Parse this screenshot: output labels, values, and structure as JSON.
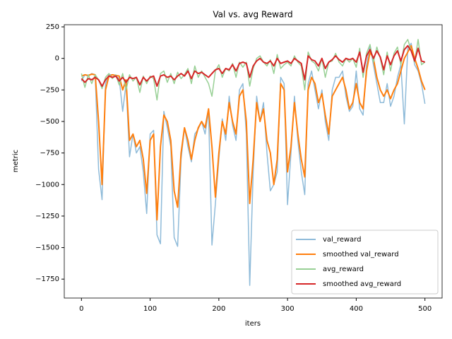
{
  "chart_data": {
    "type": "line",
    "title": "Val vs. avg Reward",
    "x_label": "iters",
    "y_label": "metric",
    "x": [
      0,
      5,
      10,
      15,
      20,
      25,
      30,
      35,
      40,
      45,
      50,
      55,
      60,
      65,
      70,
      75,
      80,
      85,
      90,
      95,
      100,
      105,
      110,
      115,
      120,
      125,
      130,
      135,
      140,
      145,
      150,
      155,
      160,
      165,
      170,
      175,
      180,
      185,
      190,
      195,
      200,
      205,
      210,
      215,
      220,
      225,
      230,
      235,
      240,
      245,
      250,
      255,
      260,
      265,
      270,
      275,
      280,
      285,
      290,
      295,
      300,
      305,
      310,
      315,
      320,
      325,
      330,
      335,
      340,
      345,
      350,
      355,
      360,
      365,
      370,
      375,
      380,
      385,
      390,
      395,
      400,
      405,
      410,
      415,
      420,
      425,
      430,
      435,
      440,
      445,
      450,
      455,
      460,
      465,
      470,
      475,
      480,
      485,
      490,
      495,
      500
    ],
    "series": [
      {
        "name": "val_reward",
        "color": "#8fbbd9",
        "values": [
          -180,
          -130,
          -140,
          -120,
          -130,
          -880,
          -1120,
          -200,
          -130,
          -130,
          -140,
          -160,
          -420,
          -200,
          -780,
          -600,
          -750,
          -700,
          -900,
          -1230,
          -600,
          -570,
          -1400,
          -1470,
          -420,
          -550,
          -700,
          -1420,
          -1490,
          -800,
          -550,
          -700,
          -820,
          -600,
          -560,
          -500,
          -600,
          -420,
          -1480,
          -1150,
          -800,
          -480,
          -650,
          -300,
          -530,
          -650,
          -250,
          -200,
          -600,
          -1800,
          -900,
          -300,
          -500,
          -350,
          -750,
          -1050,
          -1000,
          -900,
          -150,
          -200,
          -1160,
          -750,
          -300,
          -650,
          -900,
          -1080,
          -200,
          -100,
          -250,
          -400,
          -250,
          -500,
          -650,
          -250,
          -150,
          -150,
          -100,
          -300,
          -420,
          -380,
          -100,
          -400,
          -450,
          -50,
          100,
          -50,
          -200,
          -350,
          -350,
          -200,
          -380,
          -300,
          -150,
          -50,
          -520,
          80,
          120,
          -50,
          -100,
          -200,
          -360
        ]
      },
      {
        "name": "smoothed val_reward",
        "color": "#ff7f0e",
        "values": [
          -140,
          -130,
          -135,
          -125,
          -130,
          -500,
          -1000,
          -250,
          -140,
          -130,
          -135,
          -140,
          -250,
          -170,
          -650,
          -600,
          -700,
          -650,
          -800,
          -1070,
          -650,
          -600,
          -1280,
          -700,
          -450,
          -500,
          -650,
          -1050,
          -1180,
          -750,
          -550,
          -650,
          -800,
          -650,
          -550,
          -500,
          -550,
          -400,
          -700,
          -1100,
          -750,
          -500,
          -600,
          -350,
          -500,
          -600,
          -300,
          -250,
          -500,
          -1150,
          -800,
          -350,
          -500,
          -400,
          -650,
          -750,
          -1000,
          -800,
          -200,
          -250,
          -900,
          -700,
          -350,
          -600,
          -800,
          -940,
          -250,
          -150,
          -200,
          -350,
          -280,
          -450,
          -600,
          -300,
          -250,
          -200,
          -150,
          -250,
          -400,
          -350,
          -200,
          -350,
          -400,
          -100,
          50,
          0,
          -150,
          -250,
          -300,
          -250,
          -320,
          -250,
          -200,
          -100,
          0,
          50,
          100,
          0,
          -80,
          -180,
          -250
        ]
      },
      {
        "name": "avg_reward",
        "color": "#98d095",
        "values": [
          -120,
          -230,
          -130,
          -200,
          -130,
          -170,
          -240,
          -150,
          -120,
          -160,
          -130,
          -210,
          -120,
          -250,
          -130,
          -180,
          -150,
          -270,
          -140,
          -200,
          -140,
          -160,
          -330,
          -120,
          -100,
          -190,
          -120,
          -200,
          -110,
          -160,
          -130,
          -80,
          -200,
          -60,
          -150,
          -100,
          -150,
          -200,
          -300,
          -100,
          -50,
          -150,
          -80,
          -100,
          -40,
          -150,
          -30,
          -70,
          -30,
          -220,
          -80,
          0,
          20,
          -30,
          -60,
          -10,
          -120,
          30,
          -80,
          -50,
          -30,
          -60,
          20,
          -30,
          -60,
          -250,
          50,
          -20,
          -40,
          -100,
          0,
          -150,
          -30,
          -20,
          40,
          -30,
          -60,
          0,
          -30,
          0,
          -70,
          80,
          -150,
          40,
          110,
          -30,
          90,
          0,
          -130,
          50,
          -100,
          40,
          90,
          -50,
          110,
          150,
          60,
          -30,
          150,
          -50,
          -30
        ]
      },
      {
        "name": "smoothed avg_reward",
        "color": "#d62728",
        "values": [
          -160,
          -190,
          -160,
          -170,
          -150,
          -170,
          -220,
          -170,
          -140,
          -150,
          -140,
          -180,
          -150,
          -190,
          -150,
          -160,
          -150,
          -210,
          -150,
          -180,
          -150,
          -140,
          -220,
          -140,
          -130,
          -150,
          -140,
          -170,
          -140,
          -120,
          -140,
          -100,
          -160,
          -100,
          -120,
          -110,
          -130,
          -150,
          -120,
          -90,
          -80,
          -120,
          -80,
          -90,
          -50,
          -100,
          -40,
          -30,
          -40,
          -150,
          -60,
          -20,
          0,
          -30,
          -40,
          -20,
          -60,
          0,
          -40,
          -30,
          -20,
          -40,
          0,
          -20,
          -40,
          -170,
          20,
          -10,
          -20,
          -60,
          0,
          -80,
          -30,
          -10,
          20,
          -10,
          -30,
          0,
          -10,
          0,
          -30,
          50,
          -110,
          20,
          70,
          0,
          60,
          10,
          -90,
          20,
          -50,
          20,
          60,
          -20,
          70,
          100,
          60,
          -20,
          80,
          -20,
          -30
        ]
      }
    ],
    "xlim": [
      -25,
      525
    ],
    "ylim": [
      -1900,
      267
    ],
    "xticks": [
      0,
      100,
      200,
      300,
      400,
      500
    ],
    "yticks": [
      250,
      0,
      {
        "value": -250,
        "label": "−250"
      },
      {
        "value": -500,
        "label": "−500"
      },
      {
        "value": -750,
        "label": "−750"
      },
      {
        "value": -1000,
        "label": "−1000"
      },
      {
        "value": -1250,
        "label": "−1250"
      },
      {
        "value": -1500,
        "label": "−1500"
      },
      {
        "value": -1750,
        "label": "−1750"
      }
    ],
    "legend": "lower right",
    "grid": false
  }
}
